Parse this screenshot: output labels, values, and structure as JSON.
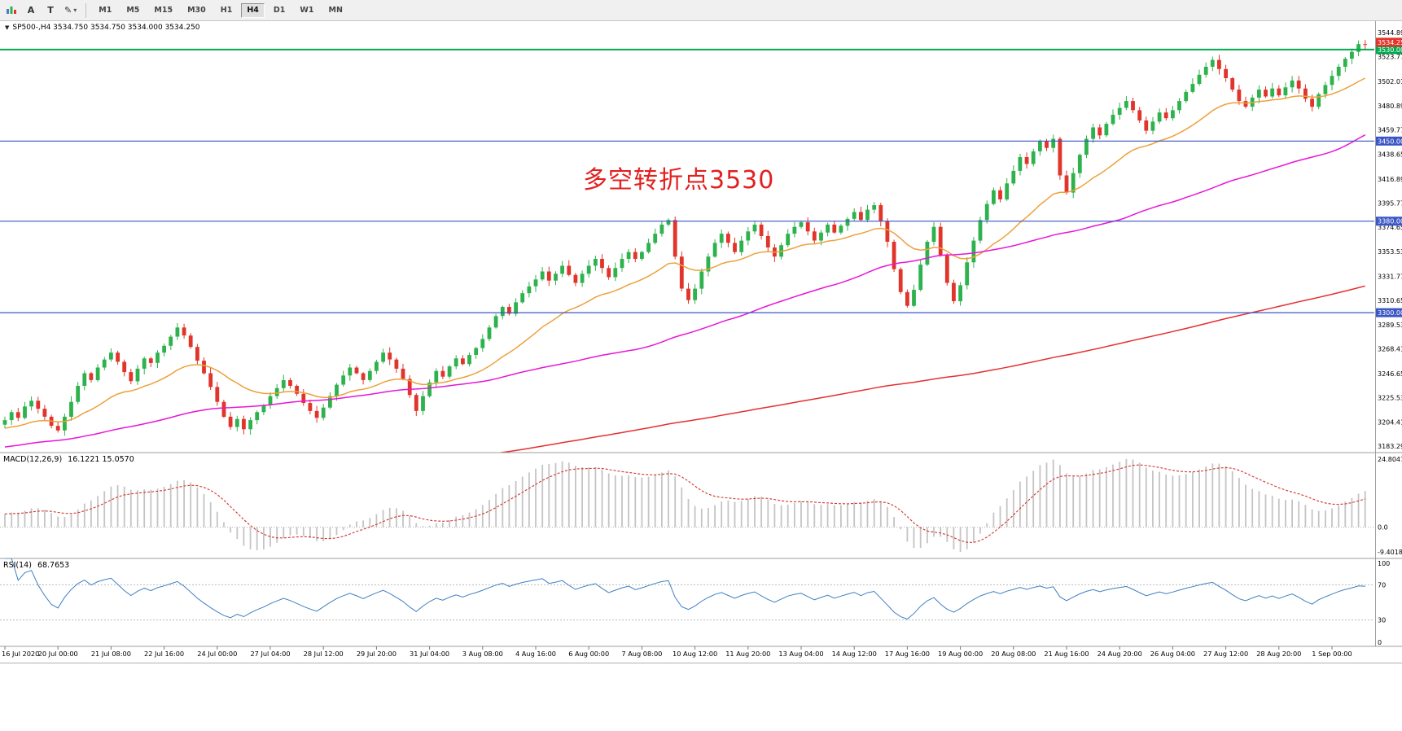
{
  "toolbar": {
    "tools": [
      {
        "name": "charts"
      },
      {
        "label": "A"
      },
      {
        "label": "T"
      },
      {
        "name": "draw"
      }
    ],
    "timeframes": [
      {
        "label": "M1"
      },
      {
        "label": "M5"
      },
      {
        "label": "M15"
      },
      {
        "label": "M30"
      },
      {
        "label": "H1"
      },
      {
        "label": "H4"
      },
      {
        "label": "D1"
      },
      {
        "label": "W1"
      },
      {
        "label": "MN"
      }
    ],
    "active_timeframe": "H4"
  },
  "chart_data": {
    "type": "candlestick",
    "symbol": "SP500-",
    "period": "H4",
    "header_line": "SP500-,H4  3534.750 3534.750 3534.000 3534.250",
    "quote": {
      "open": 3534.75,
      "high": 3534.75,
      "low": 3534.0,
      "close": 3534.25
    },
    "annotation": {
      "text": "多空转折点3530",
      "color": "#e32020"
    },
    "bars_per_label": 8,
    "x_labels": [
      "16 Jul 2020",
      "20 Jul 00:00",
      "21 Jul 08:00",
      "22 Jul 16:00",
      "24 Jul 00:00",
      "27 Jul 04:00",
      "28 Jul 12:00",
      "29 Jul 20:00",
      "31 Jul 04:00",
      "3 Aug 08:00",
      "4 Aug 16:00",
      "6 Aug 00:00",
      "7 Aug 08:00",
      "10 Aug 12:00",
      "11 Aug 20:00",
      "13 Aug 04:00",
      "14 Aug 12:00",
      "17 Aug 16:00",
      "19 Aug 00:00",
      "20 Aug 08:00",
      "21 Aug 16:00",
      "24 Aug 20:00",
      "26 Aug 04:00",
      "27 Aug 12:00",
      "28 Aug 20:00",
      "1 Sep 00:00"
    ],
    "price_axis_labels": [
      "3544.890",
      "3523.770",
      "3502.010",
      "3480.890",
      "3459.770",
      "3438.650",
      "3416.890",
      "3395.770",
      "3374.650",
      "3353.530",
      "3331.770",
      "3310.650",
      "3289.530",
      "3268.410",
      "3246.650",
      "3225.530",
      "3204.410",
      "3183.290"
    ],
    "first_open": 3202,
    "closes": [
      3206,
      3213,
      3208,
      3218,
      3223,
      3216,
      3209,
      3201,
      3197,
      3209,
      3222,
      3236,
      3247,
      3241,
      3252,
      3259,
      3265,
      3257,
      3248,
      3240,
      3251,
      3260,
      3256,
      3265,
      3271,
      3279,
      3287,
      3280,
      3270,
      3258,
      3247,
      3235,
      3222,
      3209,
      3200,
      3207,
      3198,
      3206,
      3213,
      3219,
      3227,
      3234,
      3241,
      3236,
      3229,
      3221,
      3214,
      3208,
      3217,
      3227,
      3237,
      3245,
      3252,
      3247,
      3241,
      3249,
      3257,
      3265,
      3259,
      3251,
      3242,
      3228,
      3214,
      3227,
      3239,
      3249,
      3244,
      3253,
      3260,
      3255,
      3263,
      3269,
      3277,
      3287,
      3297,
      3305,
      3299,
      3309,
      3317,
      3323,
      3329,
      3336,
      3328,
      3334,
      3341,
      3333,
      3326,
      3334,
      3341,
      3347,
      3339,
      3331,
      3339,
      3347,
      3353,
      3347,
      3353,
      3361,
      3369,
      3377,
      3381,
      3349,
      3321,
      3311,
      3321,
      3336,
      3349,
      3361,
      3369,
      3361,
      3353,
      3363,
      3371,
      3377,
      3367,
      3357,
      3349,
      3359,
      3369,
      3375,
      3379,
      3371,
      3363,
      3370,
      3377,
      3370,
      3376,
      3382,
      3388,
      3381,
      3390,
      3394,
      3380,
      3362,
      3338,
      3318,
      3306,
      3320,
      3342,
      3362,
      3375,
      3350,
      3326,
      3310,
      3324,
      3344,
      3363,
      3381,
      3395,
      3407,
      3399,
      3413,
      3424,
      3436,
      3430,
      3441,
      3450,
      3444,
      3452,
      3420,
      3405,
      3422,
      3438,
      3452,
      3462,
      3455,
      3465,
      3473,
      3479,
      3485,
      3477,
      3468,
      3459,
      3467,
      3475,
      3470,
      3477,
      3485,
      3493,
      3500,
      3508,
      3515,
      3521,
      3513,
      3505,
      3495,
      3485,
      3480,
      3488,
      3495,
      3489,
      3496,
      3490,
      3497,
      3503,
      3496,
      3487,
      3480,
      3491,
      3499,
      3507,
      3515,
      3522,
      3528,
      3534.75,
      3534.25
    ],
    "hlines": [
      {
        "price": 3530,
        "label": "3530.000",
        "color": "#00a94f",
        "width": 2
      },
      {
        "price": 3450,
        "label": "3450.000",
        "color": "#3a56c5",
        "width": 1.2
      },
      {
        "price": 3380,
        "label": "3380.000",
        "color": "#3a56c5",
        "width": 1.2
      },
      {
        "price": 3300,
        "label": "3300.000",
        "color": "#3a56c5",
        "width": 1.2
      }
    ],
    "current_price": {
      "value": 3534.25,
      "label": "3534.250",
      "color": "#e1342a"
    },
    "moving_averages": [
      {
        "name": "fast-ma",
        "color": "#eda13b"
      },
      {
        "name": "medium-ma",
        "color": "#e816d6"
      },
      {
        "name": "slow-ma",
        "color": "#e53030"
      }
    ],
    "candle_colors": {
      "up": "#2eb24d",
      "down": "#e1342a"
    },
    "indicators": {
      "macd": {
        "title": "MACD(12,26,9)",
        "values": "16.1221 15.0570",
        "scale_labels": [
          "24.8047",
          "0.0",
          "-9.4018"
        ]
      },
      "rsi": {
        "title": "RSI(14)",
        "values": "68.7653",
        "levels": [
          70,
          30
        ],
        "scale_labels": [
          "100",
          "70",
          "30",
          "0"
        ]
      }
    }
  }
}
